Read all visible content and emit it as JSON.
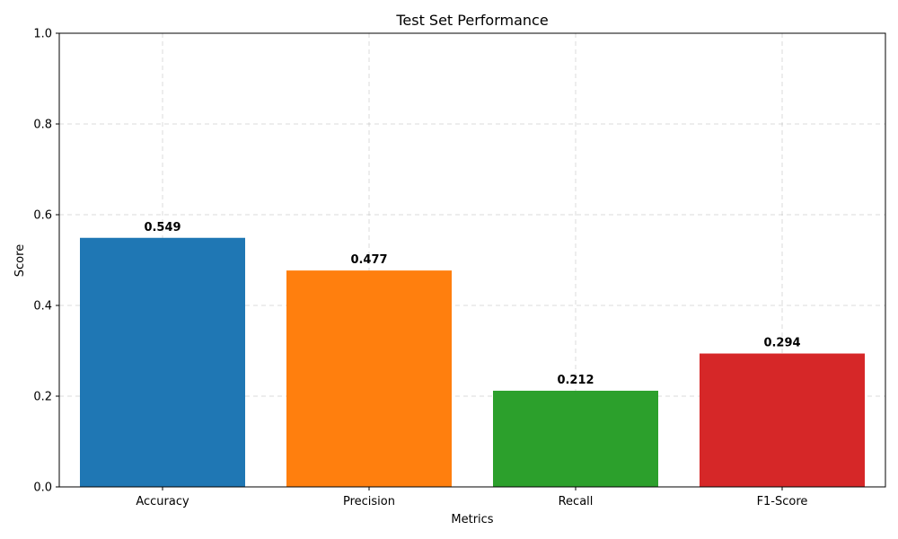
{
  "chart_data": {
    "type": "bar",
    "title": "Test Set Performance",
    "xlabel": "Metrics",
    "ylabel": "Score",
    "categories": [
      "Accuracy",
      "Precision",
      "Recall",
      "F1-Score"
    ],
    "values": [
      0.549,
      0.477,
      0.212,
      0.294
    ],
    "value_labels": [
      "0.549",
      "0.477",
      "0.212",
      "0.294"
    ],
    "colors": [
      "#1f77b4",
      "#ff7f0e",
      "#2ca02c",
      "#d62728"
    ],
    "ylim": [
      0,
      1
    ],
    "yticks": [
      0.0,
      0.2,
      0.4,
      0.6,
      0.8,
      1.0
    ],
    "ytick_labels": [
      "0.0",
      "0.2",
      "0.4",
      "0.6",
      "0.8",
      "1.0"
    ],
    "grid": true
  }
}
